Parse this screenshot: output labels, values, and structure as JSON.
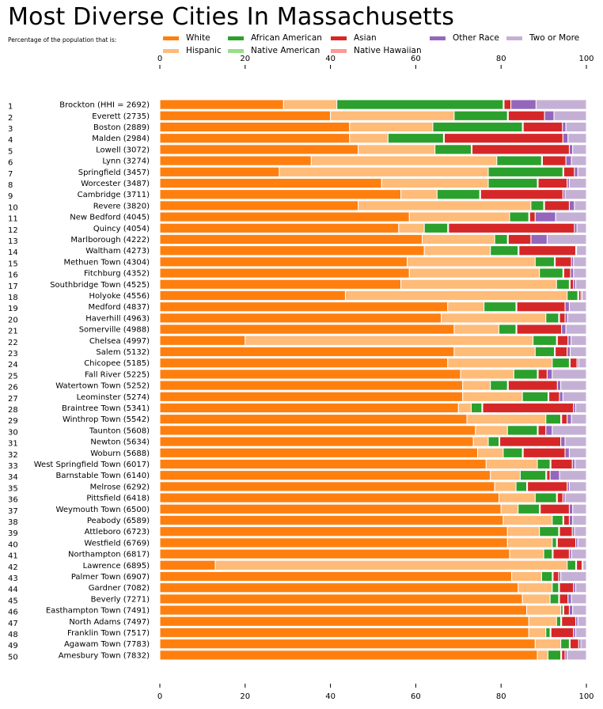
{
  "chart_data": {
    "type": "bar",
    "orientation": "horizontal",
    "stacked": true,
    "title": "Most Diverse Cities In Massachusetts",
    "subtitle": "Percentage of the population that is:",
    "xlim": [
      0,
      100
    ],
    "x_ticks": [
      "0",
      "20",
      "40",
      "60",
      "80",
      "100"
    ],
    "grid": false,
    "legend_position": "top",
    "series": [
      {
        "name": "White",
        "color": "#ff7f0e"
      },
      {
        "name": "Hispanic",
        "color": "#ffbb78"
      },
      {
        "name": "African American",
        "color": "#2ca02c"
      },
      {
        "name": "Native American",
        "color": "#98df8a"
      },
      {
        "name": "Asian",
        "color": "#d62728"
      },
      {
        "name": "Native Hawaiian",
        "color": "#ff9896"
      },
      {
        "name": "Other Race",
        "color": "#9467bd"
      },
      {
        "name": "Two or More",
        "color": "#c5b0d5"
      }
    ],
    "rows": [
      {
        "rank": "1",
        "label": "Brockton (HHI = 2692)",
        "values": [
          29,
          12.5,
          39,
          0.2,
          1.6,
          0,
          5.9,
          11.8
        ]
      },
      {
        "rank": "2",
        "label": "Everett (2735)",
        "values": [
          40,
          29,
          12.5,
          0.2,
          8.5,
          0,
          2.2,
          7.6
        ]
      },
      {
        "rank": "3",
        "label": "Boston (2889)",
        "values": [
          44.5,
          19.5,
          21,
          0.2,
          9.2,
          0,
          0.8,
          4.8
        ]
      },
      {
        "rank": "4",
        "label": "Malden (2984)",
        "values": [
          44.5,
          9,
          13,
          0.2,
          27.8,
          0,
          1.2,
          4.3
        ]
      },
      {
        "rank": "5",
        "label": "Lowell (3072)",
        "values": [
          46.5,
          18,
          8.5,
          0.2,
          22.8,
          0,
          0.8,
          3.2
        ]
      },
      {
        "rank": "6",
        "label": "Lynn (3274)",
        "values": [
          35.5,
          43.5,
          10.5,
          0.2,
          5.5,
          0,
          1.3,
          3.5
        ]
      },
      {
        "rank": "7",
        "label": "Springfield (3457)",
        "values": [
          28,
          49,
          17.5,
          0.2,
          2.5,
          0,
          0.8,
          2
        ]
      },
      {
        "rank": "8",
        "label": "Worcester (3487)",
        "values": [
          52,
          25,
          11.5,
          0.2,
          6.8,
          0,
          0.5,
          4
        ]
      },
      {
        "rank": "9",
        "label": "Cambridge (3711)",
        "values": [
          56.5,
          8.5,
          10,
          0.2,
          19.3,
          0,
          0.5,
          5
        ]
      },
      {
        "rank": "10",
        "label": "Revere (3820)",
        "values": [
          46.5,
          40.5,
          3,
          0.2,
          5.8,
          0,
          1.2,
          2.8
        ]
      },
      {
        "rank": "11",
        "label": "New Bedford (4045)",
        "values": [
          58.5,
          23.5,
          4.5,
          0.2,
          1.3,
          0,
          4.8,
          7.2
        ]
      },
      {
        "rank": "12",
        "label": "Quincy (4054)",
        "values": [
          56,
          6,
          5.5,
          0.2,
          29.5,
          0,
          0.6,
          2.2
        ]
      },
      {
        "rank": "13",
        "label": "Marlborough (4222)",
        "values": [
          61.5,
          17,
          3,
          0.2,
          5.3,
          0,
          3.8,
          9.2
        ]
      },
      {
        "rank": "14",
        "label": "Waltham (4273)",
        "values": [
          62,
          15.5,
          6.5,
          0.2,
          13.3,
          0,
          0.2,
          2.3
        ]
      },
      {
        "rank": "15",
        "label": "Methuen Town (4304)",
        "values": [
          58,
          30,
          4.5,
          0.2,
          3.8,
          0,
          0.5,
          3
        ]
      },
      {
        "rank": "16",
        "label": "Fitchburg (4352)",
        "values": [
          58.5,
          30.5,
          5.5,
          0.2,
          1.6,
          0,
          0.7,
          3
        ]
      },
      {
        "rank": "17",
        "label": "Southbridge Town (4525)",
        "values": [
          56.5,
          36.5,
          3,
          0.2,
          0.8,
          0,
          0.5,
          2.5
        ]
      },
      {
        "rank": "18",
        "label": "Holyoke (4556)",
        "values": [
          43.5,
          52,
          2.5,
          0.2,
          0.5,
          0,
          0.3,
          1
        ]
      },
      {
        "rank": "19",
        "label": "Medford (4837)",
        "values": [
          67.5,
          8.5,
          7.5,
          0.2,
          11.3,
          0,
          1,
          4
        ]
      },
      {
        "rank": "20",
        "label": "Haverhill (4963)",
        "values": [
          66,
          24.5,
          3,
          0.2,
          1.3,
          0,
          0.6,
          4.4
        ]
      },
      {
        "rank": "21",
        "label": "Somerville (4988)",
        "values": [
          69,
          10.5,
          4,
          0.2,
          10.5,
          0,
          1,
          4.8
        ]
      },
      {
        "rank": "22",
        "label": "Chelsea (4997)",
        "values": [
          20,
          67.5,
          5.5,
          0.2,
          2.5,
          0,
          0.7,
          3.6
        ]
      },
      {
        "rank": "23",
        "label": "Salem (5132)",
        "values": [
          69,
          19,
          4.5,
          0.2,
          2.8,
          0,
          0.7,
          3.8
        ]
      },
      {
        "rank": "24",
        "label": "Chicopee (5185)",
        "values": [
          67.5,
          24.5,
          4,
          0.2,
          1.6,
          0,
          0.4,
          1.8
        ]
      },
      {
        "rank": "25",
        "label": "Fall River (5225)",
        "values": [
          70.5,
          12.5,
          5.5,
          0.2,
          2.1,
          0,
          1.2,
          8
        ]
      },
      {
        "rank": "26",
        "label": "Watertown Town (5252)",
        "values": [
          71,
          6.5,
          4,
          0.2,
          11.5,
          0,
          0.8,
          6
        ]
      },
      {
        "rank": "27",
        "label": "Leominster (5274)",
        "values": [
          71,
          14,
          6,
          0.2,
          2.5,
          0,
          0.8,
          5.5
        ]
      },
      {
        "rank": "28",
        "label": "Braintree Town (5341)",
        "values": [
          70,
          3,
          2.5,
          0.2,
          21.3,
          0,
          0.5,
          2.5
        ]
      },
      {
        "rank": "29",
        "label": "Winthrop Town (5542)",
        "values": [
          72,
          18.5,
          3.5,
          0.2,
          1.3,
          0,
          1,
          3.5
        ]
      },
      {
        "rank": "30",
        "label": "Taunton (5608)",
        "values": [
          74,
          7.5,
          7,
          0.2,
          1.8,
          0,
          1.5,
          8
        ]
      },
      {
        "rank": "31",
        "label": "Newton (5634)",
        "values": [
          73.5,
          3.5,
          2.5,
          0.2,
          14.3,
          0,
          1,
          5
        ]
      },
      {
        "rank": "32",
        "label": "Woburn (5688)",
        "values": [
          74.5,
          6,
          4.5,
          0.2,
          9.8,
          0,
          1,
          4
        ]
      },
      {
        "rank": "33",
        "label": "West Springfield Town (6017)",
        "values": [
          76.5,
          12,
          3,
          0.2,
          5,
          0,
          0.6,
          2.7
        ]
      },
      {
        "rank": "34",
        "label": "Barnstable Town (6140)",
        "values": [
          77.5,
          7,
          6,
          0.2,
          0.8,
          0,
          2.2,
          6.3
        ]
      },
      {
        "rank": "35",
        "label": "Melrose (6292)",
        "values": [
          78.5,
          5,
          2.5,
          0.2,
          9.3,
          0,
          0.5,
          4
        ]
      },
      {
        "rank": "36",
        "label": "Pittsfield (6418)",
        "values": [
          79.5,
          8.5,
          5,
          0.2,
          1.3,
          0,
          0.5,
          5
        ]
      },
      {
        "rank": "37",
        "label": "Weymouth Town (6500)",
        "values": [
          80,
          4,
          5,
          0.2,
          6.8,
          0,
          0.8,
          3.2
        ]
      },
      {
        "rank": "38",
        "label": "Peabody (6589)",
        "values": [
          80.5,
          11.5,
          2.5,
          0.2,
          1.3,
          0,
          0.8,
          3.2
        ]
      },
      {
        "rank": "39",
        "label": "Attleboro (6723)",
        "values": [
          81.5,
          7.5,
          4.5,
          0.2,
          3,
          0,
          0.5,
          2.8
        ]
      },
      {
        "rank": "40",
        "label": "Westfield (6769)",
        "values": [
          81.5,
          10.5,
          1,
          0.2,
          4.3,
          0,
          0.5,
          2
        ]
      },
      {
        "rank": "41",
        "label": "Northampton (6817)",
        "values": [
          82,
          8,
          2,
          0.2,
          3.8,
          0,
          0.5,
          3.5
        ]
      },
      {
        "rank": "42",
        "label": "Lawrence (6895)",
        "values": [
          13,
          82.5,
          2,
          0.2,
          1.3,
          0,
          0.2,
          0.8
        ]
      },
      {
        "rank": "43",
        "label": "Palmer Town (6907)",
        "values": [
          82.5,
          7,
          2.5,
          0.2,
          1.3,
          0,
          0.5,
          6
        ]
      },
      {
        "rank": "44",
        "label": "Gardner (7082)",
        "values": [
          84,
          8,
          1.5,
          0.2,
          3.3,
          0,
          0.5,
          2.5
        ]
      },
      {
        "rank": "45",
        "label": "Beverly (7271)",
        "values": [
          85,
          6.5,
          2,
          0.2,
          2,
          0,
          0.8,
          3.5
        ]
      },
      {
        "rank": "46",
        "label": "Easthampton Town (7491)",
        "values": [
          86,
          8,
          0.5,
          0.2,
          1.3,
          0,
          0.8,
          3.2
        ]
      },
      {
        "rank": "47",
        "label": "North Adams (7497)",
        "values": [
          86.5,
          6.5,
          1,
          0.2,
          3.3,
          0,
          0.5,
          2
        ]
      },
      {
        "rank": "48",
        "label": "Franklin Town (7517)",
        "values": [
          86.5,
          4,
          1,
          0.2,
          5.3,
          0,
          0.5,
          2.5
        ]
      },
      {
        "rank": "49",
        "label": "Agawam Town (7783)",
        "values": [
          88,
          6,
          2,
          0.2,
          2,
          0,
          0.5,
          1.3
        ]
      },
      {
        "rank": "50",
        "label": "Amesbury Town (7832)",
        "values": [
          88.5,
          2.5,
          3,
          0.2,
          0.8,
          0,
          0.5,
          4.5
        ]
      }
    ]
  }
}
